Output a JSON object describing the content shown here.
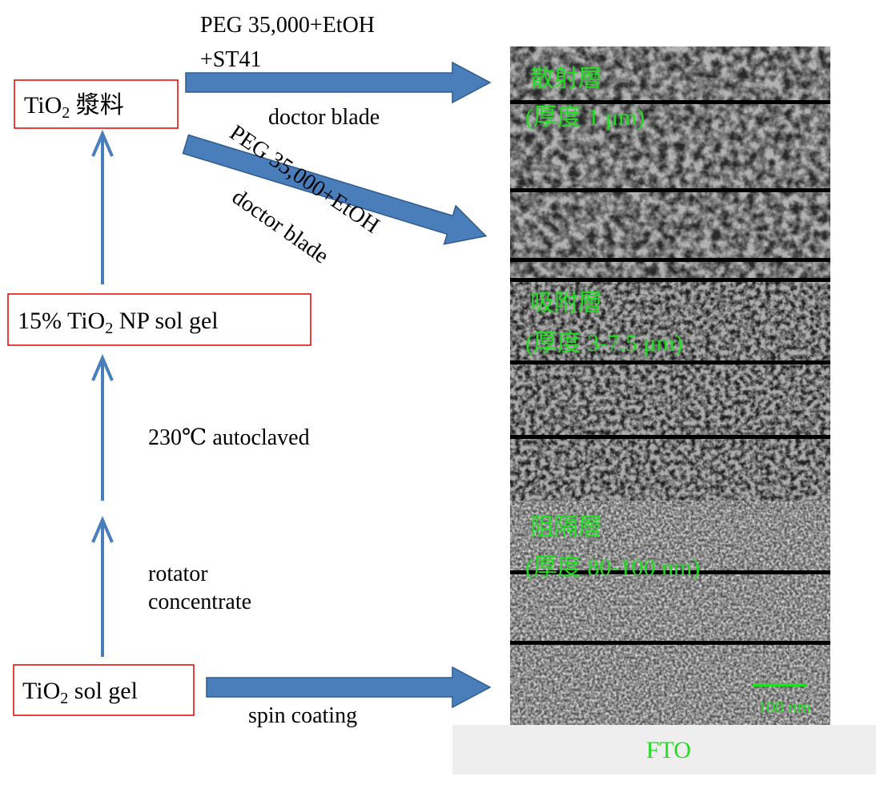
{
  "top_arrow": {
    "label_line1": "PEG 35,000+EtOH",
    "label_line2": "+ST41",
    "label_below": "doctor blade"
  },
  "diagonal_arrow": {
    "label_above": "PEG 35,000+EtOH",
    "label_below": "doctor blade"
  },
  "bottom_arrow": {
    "label": "spin coating"
  },
  "nodes": [
    {
      "main": "TiO",
      "sub": "2",
      "rest": " 漿料"
    },
    {
      "prefix": "15% ",
      "main": "TiO",
      "sub": "2",
      "rest": " NP sol gel"
    },
    {
      "main": "TiO",
      "sub": "2",
      "rest": " sol gel"
    }
  ],
  "steps": [
    {
      "lines": [
        "230℃ autoclaved"
      ]
    },
    {
      "lines": [
        "rotator",
        "concentrate"
      ]
    }
  ],
  "layers": [
    {
      "name": "散射層",
      "thickness": "(厚度 1 μm)"
    },
    {
      "name": "吸附層",
      "thickness": "(厚度 3-7.5 μm)"
    },
    {
      "name": "阻隔層",
      "thickness": "(厚度 80-100 nm)"
    }
  ],
  "scale_bar": "100 nm",
  "substrate": "FTO"
}
